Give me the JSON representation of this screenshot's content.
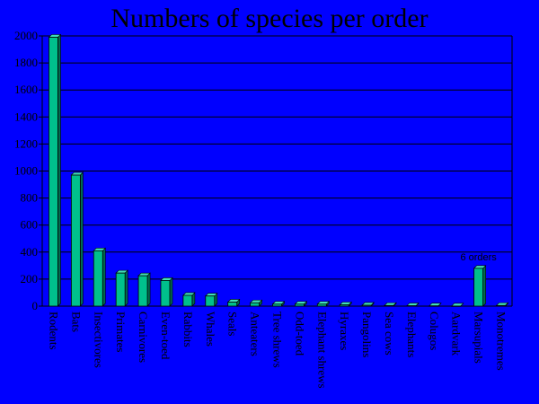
{
  "colors": {
    "background": "#0000ff",
    "bar_face": "#00c08c",
    "bar_side": "#006b4e",
    "bar_top": "#40e0b8",
    "text": "#000000",
    "gridline": "#000000"
  },
  "chart_data": {
    "type": "bar",
    "title": "Numbers of species per order",
    "xlabel": "",
    "ylabel": "",
    "ylim": [
      0,
      2000
    ],
    "yticks": [
      0,
      200,
      400,
      600,
      800,
      1000,
      1200,
      1400,
      1600,
      1800,
      2000
    ],
    "grid": true,
    "bar_style": "3d",
    "categories": [
      "Rodents",
      "Bats",
      "Insectivores",
      "Primates",
      "Carnivores",
      "Even-toed",
      "Rabbits",
      "Whales",
      "Seals",
      "Anteaters",
      "Tree shrews",
      "Odd-toed",
      "Elephant shrews",
      "Hyraxes",
      "Pangolins",
      "Sea cows",
      "Elephants",
      "Colugos",
      "Aardvark",
      "Marsupials",
      "Monotremes"
    ],
    "values": [
      1990,
      970,
      410,
      245,
      225,
      190,
      80,
      75,
      30,
      25,
      15,
      15,
      15,
      10,
      7,
      5,
      3,
      2,
      1,
      280,
      5
    ],
    "annotations": [
      {
        "category": "Marsupials",
        "text": "6 orders"
      }
    ]
  }
}
